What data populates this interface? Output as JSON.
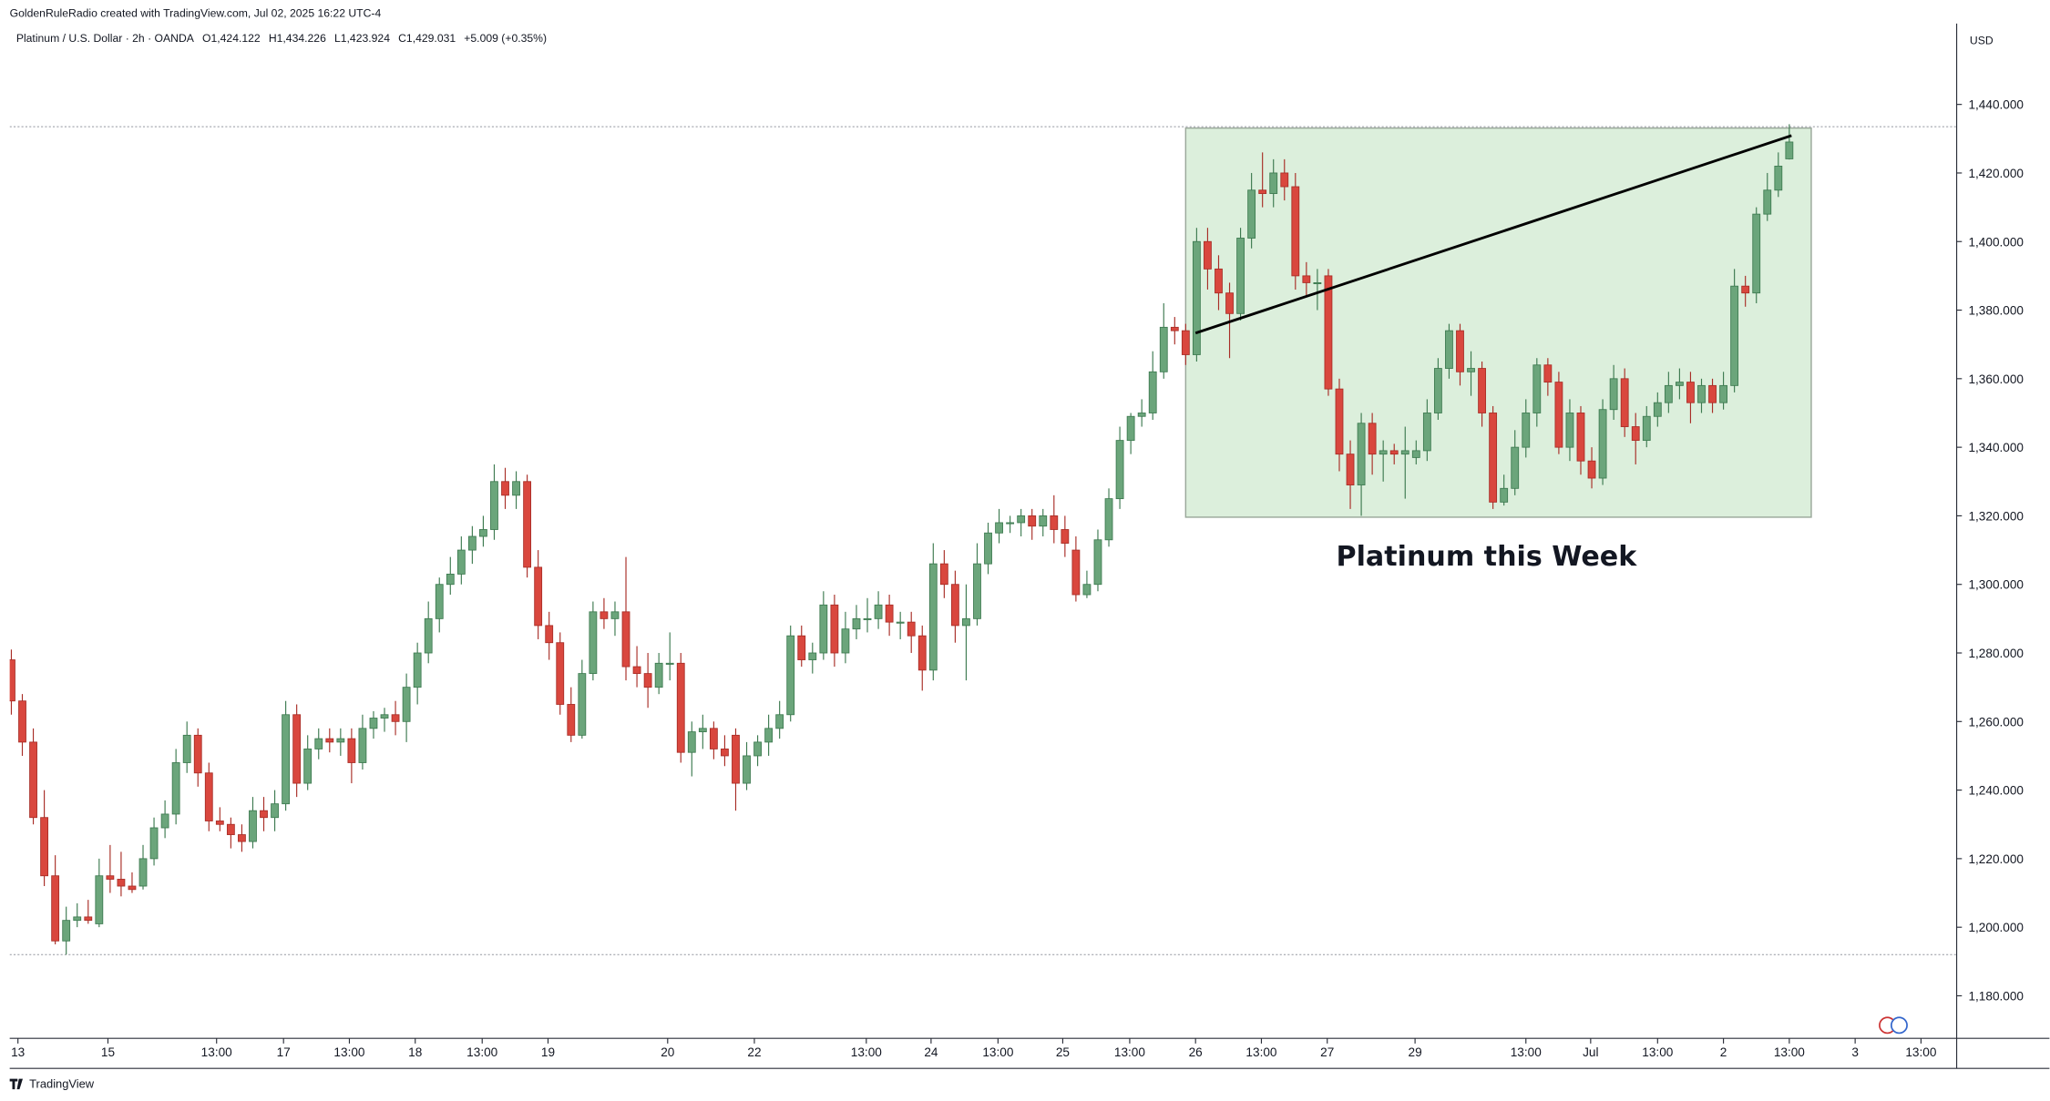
{
  "chart_data": {
    "type": "candlestick",
    "credit": "GoldenRuleRadio created with TradingView.com, Jul 02, 2025 16:22 UTC-4",
    "symbol": "Platinum / U.S. Dollar · 2h · OANDA",
    "ohlc_legend": [
      "O1,424.122",
      "H1,434.226",
      "L1,423.924",
      "C1,429.031"
    ],
    "change": "+5.009 (+0.35%)",
    "currency": "USD",
    "brand": "TradingView",
    "annotation": {
      "text": "Platinum this Week",
      "x": 134.4,
      "y": 1305.5
    },
    "box": {
      "x": [
        107,
        164
      ],
      "y": [
        1319.6,
        1433.1
      ],
      "color": "#dcefdc"
    },
    "trend_line": {
      "x": [
        107.9,
        162.2
      ],
      "y": [
        1373.3,
        1430.9
      ],
      "color": "#000000"
    },
    "price_lines": [
      1433.5,
      1192
    ],
    "up_color": "#6ba57b",
    "down_color": "#d9473e",
    "xlim": [
      -0.15,
      177.25
    ],
    "ylim": [
      1167.6,
      1463.6
    ],
    "yticks": [
      {
        "value": 1180,
        "label": "1,180.000"
      },
      {
        "value": 1200,
        "label": "1,200.000"
      },
      {
        "value": 1220,
        "label": "1,220.000"
      },
      {
        "value": 1240,
        "label": "1,240.000"
      },
      {
        "value": 1260,
        "label": "1,260.000"
      },
      {
        "value": 1280,
        "label": "1,280.000"
      },
      {
        "value": 1300,
        "label": "1,300.000"
      },
      {
        "value": 1320,
        "label": "1,320.000"
      },
      {
        "value": 1340,
        "label": "1,340.000"
      },
      {
        "value": 1360,
        "label": "1,360.000"
      },
      {
        "value": 1380,
        "label": "1,380.000"
      },
      {
        "value": 1400,
        "label": "1,400.000"
      },
      {
        "value": 1420,
        "label": "1,420.000"
      },
      {
        "value": 1440,
        "label": "1,440.000"
      }
    ],
    "xticks": [
      {
        "value": 0.6,
        "label": "13"
      },
      {
        "value": 8.8,
        "label": "15"
      },
      {
        "value": 18.7,
        "label": "13:00"
      },
      {
        "value": 24.8,
        "label": "17"
      },
      {
        "value": 30.8,
        "label": "13:00"
      },
      {
        "value": 36.8,
        "label": "18"
      },
      {
        "value": 42.9,
        "label": "13:00"
      },
      {
        "value": 48.9,
        "label": "19"
      },
      {
        "value": 59.8,
        "label": "20"
      },
      {
        "value": 67.7,
        "label": "22"
      },
      {
        "value": 77.9,
        "label": "13:00"
      },
      {
        "value": 83.8,
        "label": "24"
      },
      {
        "value": 89.9,
        "label": "13:00"
      },
      {
        "value": 95.8,
        "label": "25"
      },
      {
        "value": 101.9,
        "label": "13:00"
      },
      {
        "value": 107.9,
        "label": "26"
      },
      {
        "value": 113.9,
        "label": "13:00"
      },
      {
        "value": 119.9,
        "label": "27"
      },
      {
        "value": 127.9,
        "label": "29"
      },
      {
        "value": 138,
        "label": "13:00"
      },
      {
        "value": 143.9,
        "label": "Jul"
      },
      {
        "value": 150,
        "label": "13:00"
      },
      {
        "value": 156,
        "label": "2"
      },
      {
        "value": 162,
        "label": "13:00"
      },
      {
        "value": 168,
        "label": "3"
      },
      {
        "value": 174,
        "label": "13:00"
      }
    ],
    "ohlc": [
      [
        1278,
        1281,
        1262,
        1266
      ],
      [
        1266,
        1268,
        1250,
        1254
      ],
      [
        1254,
        1258,
        1230,
        1232
      ],
      [
        1232,
        1240,
        1212,
        1215
      ],
      [
        1215,
        1221,
        1195,
        1196
      ],
      [
        1196,
        1206,
        1192,
        1202
      ],
      [
        1202,
        1207,
        1200,
        1203
      ],
      [
        1203,
        1208,
        1201,
        1202
      ],
      [
        1201,
        1220,
        1200,
        1215
      ],
      [
        1215,
        1224,
        1210,
        1214
      ],
      [
        1214,
        1222,
        1209,
        1212
      ],
      [
        1212,
        1216,
        1210,
        1211
      ],
      [
        1212,
        1224,
        1211,
        1220
      ],
      [
        1220,
        1232,
        1218,
        1229
      ],
      [
        1229,
        1237,
        1226,
        1233
      ],
      [
        1233,
        1252,
        1230,
        1248
      ],
      [
        1248,
        1260,
        1245,
        1256
      ],
      [
        1256,
        1258,
        1241,
        1245
      ],
      [
        1245,
        1248,
        1228,
        1231
      ],
      [
        1231,
        1235,
        1228,
        1230
      ],
      [
        1230,
        1232,
        1223,
        1227
      ],
      [
        1227,
        1230,
        1222,
        1225
      ],
      [
        1225,
        1238,
        1223,
        1234
      ],
      [
        1234,
        1238,
        1228,
        1232
      ],
      [
        1232,
        1240,
        1228,
        1236
      ],
      [
        1236,
        1266,
        1234,
        1262
      ],
      [
        1262,
        1265,
        1238,
        1242
      ],
      [
        1242,
        1256,
        1240,
        1252
      ],
      [
        1252,
        1258,
        1249,
        1255
      ],
      [
        1255,
        1258,
        1251,
        1254
      ],
      [
        1254,
        1258,
        1250,
        1255
      ],
      [
        1255,
        1258,
        1242,
        1248
      ],
      [
        1248,
        1262,
        1246,
        1258
      ],
      [
        1258,
        1263,
        1255,
        1261
      ],
      [
        1261,
        1264,
        1257,
        1262
      ],
      [
        1262,
        1266,
        1256,
        1260
      ],
      [
        1260,
        1274,
        1254,
        1270
      ],
      [
        1270,
        1283,
        1265,
        1280
      ],
      [
        1280,
        1295,
        1277,
        1290
      ],
      [
        1290,
        1302,
        1286,
        1300
      ],
      [
        1300,
        1308,
        1297,
        1303
      ],
      [
        1303,
        1314,
        1300,
        1310
      ],
      [
        1310,
        1317,
        1306,
        1314
      ],
      [
        1314,
        1320,
        1311,
        1316
      ],
      [
        1316,
        1335,
        1313,
        1330
      ],
      [
        1330,
        1334,
        1322,
        1326
      ],
      [
        1326,
        1333,
        1322,
        1330
      ],
      [
        1330,
        1332,
        1302,
        1305
      ],
      [
        1305,
        1310,
        1284,
        1288
      ],
      [
        1288,
        1292,
        1278,
        1283
      ],
      [
        1283,
        1286,
        1262,
        1265
      ],
      [
        1265,
        1270,
        1254,
        1256
      ],
      [
        1256,
        1278,
        1255,
        1274
      ],
      [
        1274,
        1295,
        1272,
        1292
      ],
      [
        1292,
        1296,
        1287,
        1290
      ],
      [
        1290,
        1295,
        1285,
        1292
      ],
      [
        1292,
        1308,
        1272,
        1276
      ],
      [
        1276,
        1282,
        1270,
        1274
      ],
      [
        1274,
        1280,
        1264,
        1270
      ],
      [
        1270,
        1280,
        1268,
        1277
      ],
      [
        1277,
        1286,
        1272,
        1277
      ],
      [
        1277,
        1280,
        1248,
        1251
      ],
      [
        1251,
        1260,
        1244,
        1257
      ],
      [
        1257,
        1262,
        1252,
        1258
      ],
      [
        1258,
        1260,
        1249,
        1252
      ],
      [
        1252,
        1256,
        1247,
        1250
      ],
      [
        1256,
        1258,
        1234,
        1242
      ],
      [
        1242,
        1254,
        1240,
        1250
      ],
      [
        1250,
        1256,
        1247,
        1254
      ],
      [
        1254,
        1262,
        1250,
        1258
      ],
      [
        1258,
        1266,
        1255,
        1262
      ],
      [
        1262,
        1288,
        1260,
        1285
      ],
      [
        1285,
        1288,
        1276,
        1278
      ],
      [
        1278,
        1283,
        1274,
        1280
      ],
      [
        1280,
        1298,
        1278,
        1294
      ],
      [
        1294,
        1297,
        1276,
        1280
      ],
      [
        1280,
        1292,
        1277,
        1287
      ],
      [
        1287,
        1294,
        1284,
        1290
      ],
      [
        1290,
        1296,
        1286,
        1290
      ],
      [
        1290,
        1298,
        1287,
        1294
      ],
      [
        1294,
        1297,
        1285,
        1289
      ],
      [
        1289,
        1292,
        1284,
        1289
      ],
      [
        1289,
        1292,
        1280,
        1285
      ],
      [
        1285,
        1288,
        1269,
        1275
      ],
      [
        1275,
        1312,
        1272,
        1306
      ],
      [
        1306,
        1310,
        1296,
        1300
      ],
      [
        1300,
        1304,
        1283,
        1288
      ],
      [
        1288,
        1300,
        1272,
        1290
      ],
      [
        1290,
        1312,
        1288,
        1306
      ],
      [
        1306,
        1318,
        1303,
        1315
      ],
      [
        1315,
        1322,
        1312,
        1318
      ],
      [
        1318,
        1320,
        1315,
        1318
      ],
      [
        1318,
        1322,
        1314,
        1320
      ],
      [
        1320,
        1322,
        1313,
        1317
      ],
      [
        1317,
        1322,
        1314,
        1320
      ],
      [
        1320,
        1326,
        1312,
        1316
      ],
      [
        1316,
        1320,
        1308,
        1312
      ],
      [
        1310,
        1314,
        1295,
        1297
      ],
      [
        1297,
        1304,
        1296,
        1300
      ],
      [
        1300,
        1316,
        1298,
        1313
      ],
      [
        1313,
        1328,
        1311,
        1325
      ],
      [
        1325,
        1346,
        1322,
        1342
      ],
      [
        1342,
        1350,
        1338,
        1349
      ],
      [
        1349,
        1354,
        1346,
        1350
      ],
      [
        1350,
        1368,
        1348,
        1362
      ],
      [
        1362,
        1382,
        1360,
        1375
      ],
      [
        1375,
        1378,
        1370,
        1374
      ],
      [
        1374,
        1376,
        1364,
        1367
      ],
      [
        1367,
        1404,
        1365,
        1400
      ],
      [
        1400,
        1404,
        1386,
        1392
      ],
      [
        1392,
        1396,
        1380,
        1385
      ],
      [
        1385,
        1388,
        1366,
        1379
      ],
      [
        1379,
        1404,
        1377,
        1401
      ],
      [
        1401,
        1420,
        1398,
        1415
      ],
      [
        1415,
        1426,
        1410,
        1414
      ],
      [
        1414,
        1424,
        1410,
        1420
      ],
      [
        1420,
        1424,
        1412,
        1416
      ],
      [
        1416,
        1420,
        1386,
        1390
      ],
      [
        1390,
        1394,
        1384,
        1388
      ],
      [
        1388,
        1392,
        1380,
        1388
      ],
      [
        1390,
        1392,
        1355,
        1357
      ],
      [
        1357,
        1360,
        1333,
        1338
      ],
      [
        1338,
        1342,
        1322,
        1329
      ],
      [
        1329,
        1350,
        1320,
        1347
      ],
      [
        1347,
        1350,
        1332,
        1338
      ],
      [
        1338,
        1342,
        1330,
        1339
      ],
      [
        1339,
        1341,
        1335,
        1338
      ],
      [
        1338,
        1346,
        1325,
        1339
      ],
      [
        1337,
        1342,
        1335,
        1339
      ],
      [
        1339,
        1354,
        1336,
        1350
      ],
      [
        1350,
        1366,
        1348,
        1363
      ],
      [
        1363,
        1376,
        1360,
        1374
      ],
      [
        1374,
        1376,
        1358,
        1362
      ],
      [
        1362,
        1368,
        1355,
        1363
      ],
      [
        1363,
        1365,
        1346,
        1350
      ],
      [
        1350,
        1352,
        1322,
        1324
      ],
      [
        1324,
        1332,
        1323,
        1328
      ],
      [
        1328,
        1345,
        1326,
        1340
      ],
      [
        1340,
        1354,
        1337,
        1350
      ],
      [
        1350,
        1366,
        1346,
        1364
      ],
      [
        1364,
        1366,
        1355,
        1359
      ],
      [
        1359,
        1362,
        1338,
        1340
      ],
      [
        1340,
        1354,
        1336,
        1350
      ],
      [
        1350,
        1352,
        1332,
        1336
      ],
      [
        1336,
        1340,
        1328,
        1331
      ],
      [
        1331,
        1354,
        1329,
        1351
      ],
      [
        1351,
        1364,
        1348,
        1360
      ],
      [
        1360,
        1363,
        1343,
        1346
      ],
      [
        1346,
        1350,
        1335,
        1342
      ],
      [
        1342,
        1352,
        1340,
        1349
      ],
      [
        1349,
        1356,
        1346,
        1353
      ],
      [
        1353,
        1362,
        1350,
        1358
      ],
      [
        1358,
        1363,
        1354,
        1359
      ],
      [
        1359,
        1362,
        1347,
        1353
      ],
      [
        1353,
        1360,
        1350,
        1358
      ],
      [
        1358,
        1360,
        1350,
        1353
      ],
      [
        1353,
        1362,
        1351,
        1358
      ],
      [
        1358,
        1392,
        1356,
        1387
      ],
      [
        1387,
        1390,
        1381,
        1385
      ],
      [
        1385,
        1410,
        1382,
        1408
      ],
      [
        1408,
        1420,
        1406,
        1415
      ],
      [
        1415,
        1426,
        1413,
        1422
      ],
      [
        1424.122,
        1434.226,
        1423.924,
        1429.031
      ]
    ]
  }
}
